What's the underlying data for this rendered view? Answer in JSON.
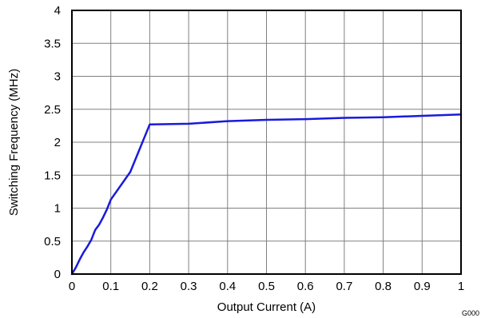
{
  "chart_data": {
    "type": "line",
    "xlabel": "Output Current (A)",
    "ylabel": "Switching Frequency (MHz)",
    "xlim": [
      0,
      1
    ],
    "ylim": [
      0,
      4
    ],
    "grid": true,
    "x_ticks": [
      "0",
      "0.1",
      "0.2",
      "0.3",
      "0.4",
      "0.5",
      "0.6",
      "0.7",
      "0.8",
      "0.9",
      "1"
    ],
    "y_ticks": [
      "0",
      "0.5",
      "1",
      "1.5",
      "2",
      "2.5",
      "3",
      "3.5",
      "4"
    ],
    "figure_id": "G000",
    "series": [
      {
        "color": "#1a1adb",
        "x": [
          0,
          0.01,
          0.02,
          0.03,
          0.04,
          0.05,
          0.06,
          0.07,
          0.08,
          0.09,
          0.1,
          0.15,
          0.2,
          0.3,
          0.4,
          0.5,
          0.6,
          0.7,
          0.8,
          0.9,
          1.0
        ],
        "y": [
          0,
          0.1,
          0.22,
          0.33,
          0.42,
          0.52,
          0.67,
          0.75,
          0.86,
          0.98,
          1.13,
          1.55,
          2.27,
          2.28,
          2.32,
          2.34,
          2.35,
          2.37,
          2.38,
          2.4,
          2.42
        ]
      }
    ]
  }
}
